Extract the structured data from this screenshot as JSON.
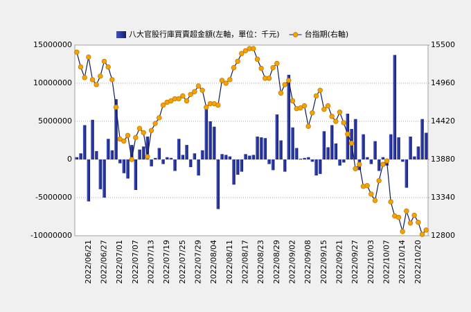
{
  "chart_data": {
    "type": "bar",
    "categories": [
      null,
      null,
      null,
      "2022/06/21",
      null,
      null,
      null,
      "2022/06/27",
      null,
      null,
      null,
      "2022/07/01",
      null,
      null,
      null,
      "2022/07/07",
      null,
      null,
      null,
      "2022/07/13",
      null,
      null,
      null,
      "2022/07/19",
      null,
      null,
      null,
      "2022/07/25",
      null,
      null,
      null,
      "2022/07/29",
      null,
      null,
      null,
      "2022/08/04",
      null,
      null,
      null,
      "2022/08/11",
      null,
      null,
      null,
      "2022/08/17",
      null,
      null,
      null,
      "2022/08/23",
      null,
      null,
      null,
      "2022/08/29",
      null,
      null,
      null,
      "2022/09/02",
      null,
      null,
      null,
      "2022/09/08",
      null,
      null,
      null,
      "2022/09/15",
      null,
      null,
      null,
      "2022/09/21",
      null,
      null,
      null,
      "2022/09/27",
      null,
      null,
      null,
      "2022/10/03",
      null,
      null,
      null,
      "2022/10/07",
      null,
      null,
      null,
      "2022/10/14",
      null,
      null,
      null,
      "2022/10/20",
      null,
      null
    ],
    "series": [
      {
        "name": "八大官股行庫買賣超金額(左軸，單位：千元)",
        "type": "bar",
        "color": "#1f2a8a",
        "values": [
          300000,
          800000,
          4500000,
          -5500000,
          5200000,
          1100000,
          -3900000,
          -5000000,
          2700000,
          1200000,
          7900000,
          -500000,
          -1800000,
          -2500000,
          1900000,
          -4000000,
          1300000,
          1700000,
          3000000,
          -900000,
          200000,
          1500000,
          -600000,
          300000,
          200000,
          -1500000,
          2700000,
          600000,
          1900000,
          -1000000,
          800000,
          -2100000,
          1200000,
          6900000,
          5000000,
          4300000,
          -6500000,
          700000,
          600000,
          400000,
          -3300000,
          -2000000,
          -1600000,
          700000,
          500000,
          600000,
          3000000,
          2900000,
          2800000,
          -600000,
          -1400000,
          5900000,
          2500000,
          -1600000,
          11100000,
          4200000,
          1500000,
          100000,
          200000,
          300000,
          -300000,
          -2100000,
          -1900000,
          3700000,
          1600000,
          4500000,
          2100000,
          -800000,
          -400000,
          6000000,
          4000000,
          5300000,
          -1400000,
          3300000,
          300000,
          -600000,
          2400000,
          -1500000,
          300000,
          -800000,
          3300000,
          13700000,
          2900000,
          -300000,
          -3700000,
          3000000,
          400000,
          1700000,
          5300000,
          3500000
        ]
      },
      {
        "name": "台指期(右軸)",
        "type": "line",
        "axis": "y2",
        "color": "#0d1a5a",
        "marker_color": "#f5a300",
        "values": [
          15400,
          15190,
          15040,
          15330,
          15010,
          14940,
          15060,
          15270,
          15190,
          15010,
          14620,
          14170,
          14140,
          14220,
          13880,
          14190,
          14320,
          14260,
          13920,
          14290,
          14390,
          14470,
          14650,
          14690,
          14710,
          14740,
          14740,
          14780,
          14710,
          14800,
          14840,
          14920,
          14860,
          14620,
          14670,
          14670,
          14650,
          15000,
          14960,
          15010,
          15180,
          15270,
          15380,
          15420,
          15450,
          15450,
          15300,
          15170,
          15030,
          15030,
          15180,
          15240,
          14820,
          14940,
          15000,
          14710,
          14600,
          14610,
          14640,
          14350,
          14540,
          14780,
          14860,
          14590,
          14640,
          14490,
          14420,
          14550,
          14400,
          14240,
          14110,
          13750,
          13810,
          13500,
          13510,
          13390,
          13300,
          13580,
          13810,
          13860,
          13280,
          13080,
          13060,
          12860,
          13150,
          12980,
          13090,
          12990,
          12820,
          12880
        ]
      }
    ],
    "ylim": [
      -10000000,
      15000000
    ],
    "yticks": [
      -10000000,
      -5000000,
      0,
      5000000,
      10000000,
      15000000
    ],
    "y2lim": [
      12800,
      15500
    ],
    "y2ticks": [
      12800,
      13340,
      13880,
      14420,
      14960,
      15500
    ],
    "grid": true,
    "legend": "top"
  }
}
